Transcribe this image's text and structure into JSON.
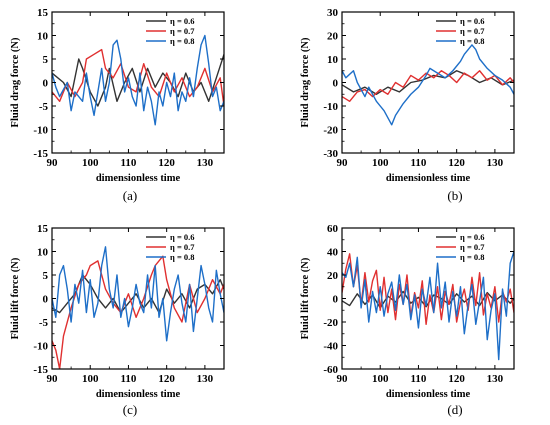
{
  "chart_data": [
    {
      "type": "line",
      "panel": "(a)",
      "xlabel": "dimensionless time",
      "ylabel": "Fluid drag force (N)",
      "xlim": [
        90,
        135
      ],
      "ylim": [
        -15,
        15
      ],
      "xticks": [
        90,
        100,
        110,
        120,
        130
      ],
      "yticks": [
        -15,
        -10,
        -5,
        0,
        5,
        10,
        15
      ],
      "legend": "top-right",
      "series": [
        {
          "name": "η = 0.6",
          "color": "#333333",
          "x": [
            90,
            93,
            95,
            97,
            98,
            100,
            102,
            104,
            105,
            107,
            109,
            111,
            113,
            115,
            117,
            119,
            121,
            123,
            125,
            127,
            129,
            131,
            133,
            135
          ],
          "y": [
            2,
            0,
            -3,
            5,
            3,
            -2,
            -5,
            -1,
            3,
            -4,
            0,
            3,
            -2,
            3,
            -1,
            2,
            0,
            -3,
            2,
            -2,
            0,
            -4,
            1,
            6
          ]
        },
        {
          "name": "η = 0.7",
          "color": "#e03030",
          "x": [
            90,
            92,
            94,
            96,
            98,
            99,
            101,
            103,
            104,
            106,
            108,
            110,
            112,
            114,
            116,
            118,
            120,
            122,
            124,
            126,
            128,
            130,
            132,
            134,
            135
          ],
          "y": [
            -2,
            -4,
            0,
            -3,
            0,
            5,
            6,
            7,
            3,
            1,
            4,
            -1,
            -2,
            4,
            -1,
            -3,
            2,
            -2,
            1,
            -3,
            -1,
            3,
            -2,
            1,
            -5
          ]
        },
        {
          "name": "η = 0.8",
          "color": "#1e6fc8",
          "x": [
            90,
            91,
            92,
            94,
            95,
            96,
            98,
            99,
            100,
            101,
            102,
            103,
            104,
            105,
            106,
            107,
            108,
            109,
            110,
            111,
            112,
            113,
            114,
            115,
            116,
            117,
            118,
            119,
            120,
            121,
            122,
            123,
            124,
            125,
            126,
            127,
            128,
            129,
            130,
            131,
            132,
            133,
            134,
            135
          ],
          "y": [
            2,
            -1,
            -3,
            0,
            -6,
            -2,
            -4,
            2,
            -3,
            -7,
            -2,
            3,
            -4,
            0,
            8,
            9,
            5,
            -2,
            1,
            -3,
            -5,
            2,
            -6,
            -1,
            -4,
            -9,
            -2,
            -5,
            0,
            -3,
            2,
            -6,
            -2,
            -4,
            1,
            -3,
            3,
            8,
            10,
            4,
            -3,
            -1,
            -6,
            -4
          ]
        }
      ]
    },
    {
      "type": "line",
      "panel": "(b)",
      "xlabel": "dimensionless time",
      "ylabel": "Fluid drag force (N)",
      "xlim": [
        90,
        135
      ],
      "ylim": [
        -30,
        30
      ],
      "xticks": [
        90,
        100,
        110,
        120,
        130
      ],
      "yticks": [
        -30,
        -20,
        -10,
        0,
        10,
        20,
        30
      ],
      "legend": "top-right",
      "series": [
        {
          "name": "η = 0.6",
          "color": "#333333",
          "x": [
            90,
            93,
            96,
            99,
            102,
            105,
            108,
            111,
            114,
            117,
            120,
            123,
            126,
            129,
            132,
            135
          ],
          "y": [
            -1,
            -4,
            -2,
            -5,
            -2,
            -4,
            0,
            1,
            3,
            2,
            5,
            3,
            0,
            2,
            -1,
            1
          ]
        },
        {
          "name": "η = 0.7",
          "color": "#e03030",
          "x": [
            90,
            92,
            94,
            96,
            98,
            100,
            102,
            104,
            106,
            108,
            110,
            112,
            114,
            116,
            118,
            120,
            122,
            124,
            126,
            128,
            130,
            132,
            134,
            135
          ],
          "y": [
            -6,
            -8,
            -4,
            -3,
            -6,
            -3,
            -5,
            0,
            -2,
            3,
            1,
            4,
            2,
            5,
            3,
            0,
            4,
            2,
            5,
            1,
            3,
            -1,
            2,
            0
          ]
        },
        {
          "name": "η = 0.8",
          "color": "#1e6fc8",
          "x": [
            90,
            91,
            93,
            94,
            96,
            97,
            99,
            101,
            103,
            104,
            106,
            108,
            110,
            112,
            113,
            115,
            117,
            119,
            121,
            122,
            124,
            125,
            126,
            128,
            130,
            132,
            134,
            135
          ],
          "y": [
            5,
            2,
            5,
            0,
            -6,
            -2,
            -8,
            -12,
            -18,
            -14,
            -9,
            -5,
            -2,
            3,
            6,
            4,
            2,
            5,
            9,
            12,
            16,
            14,
            10,
            6,
            3,
            1,
            -2,
            -5
          ]
        }
      ]
    },
    {
      "type": "line",
      "panel": "(c)",
      "xlabel": "dimensionless time",
      "ylabel": "Fluid  lift  force (N)",
      "xlim": [
        90,
        135
      ],
      "ylim": [
        -15,
        15
      ],
      "xticks": [
        90,
        100,
        110,
        120,
        130
      ],
      "yticks": [
        -15,
        -10,
        -5,
        0,
        5,
        10,
        15
      ],
      "legend": "top-right",
      "series": [
        {
          "name": "η = 0.6",
          "color": "#333333",
          "x": [
            90,
            92,
            94,
            96,
            98,
            100,
            102,
            104,
            106,
            108,
            110,
            112,
            114,
            116,
            118,
            120,
            122,
            124,
            126,
            128,
            130,
            132,
            134,
            135
          ],
          "y": [
            -2,
            -3,
            -1,
            1,
            5,
            3,
            0,
            -2,
            0,
            -3,
            -1,
            1,
            -2,
            0,
            -3,
            2,
            -1,
            1,
            -2,
            2,
            3,
            1,
            4,
            2
          ]
        },
        {
          "name": "η = 0.7",
          "color": "#e03030",
          "x": [
            90,
            91,
            92,
            93,
            95,
            97,
            99,
            100,
            102,
            104,
            106,
            108,
            110,
            112,
            114,
            116,
            117,
            119,
            120,
            122,
            124,
            126,
            128,
            130,
            132,
            134,
            135
          ],
          "y": [
            -9,
            -11,
            -15,
            -8,
            -2,
            3,
            5,
            7,
            8,
            2,
            -1,
            -3,
            1,
            -4,
            0,
            5,
            7,
            9,
            4,
            -2,
            -5,
            3,
            -3,
            0,
            4,
            1,
            3
          ]
        },
        {
          "name": "η = 0.8",
          "color": "#1e6fc8",
          "x": [
            90,
            91,
            92,
            93,
            94,
            95,
            96,
            97,
            98,
            99,
            100,
            101,
            102,
            103,
            104,
            105,
            106,
            107,
            108,
            109,
            110,
            111,
            112,
            113,
            114,
            115,
            116,
            117,
            118,
            119,
            120,
            121,
            122,
            123,
            124,
            125,
            126,
            127,
            128,
            129,
            130,
            131,
            132,
            133,
            134,
            135
          ],
          "y": [
            0,
            -4,
            5,
            7,
            2,
            -5,
            3,
            -1,
            6,
            -3,
            4,
            -4,
            -1,
            7,
            11,
            2,
            -2,
            5,
            -4,
            0,
            -6,
            -2,
            3,
            -1,
            -3,
            5,
            -2,
            7,
            -4,
            0,
            -9,
            -3,
            2,
            5,
            -1,
            -5,
            3,
            -7,
            0,
            7,
            3,
            -2,
            -5,
            6,
            1,
            -3
          ]
        }
      ]
    },
    {
      "type": "line",
      "panel": "(d)",
      "xlabel": "dimensionless time",
      "ylabel": "Fluid  lift  force (N)",
      "xlim": [
        90,
        135
      ],
      "ylim": [
        -60,
        60
      ],
      "xticks": [
        90,
        100,
        110,
        120,
        130
      ],
      "yticks": [
        -60,
        -40,
        -20,
        0,
        20,
        40,
        60
      ],
      "legend": "top-right",
      "series": [
        {
          "name": "η = 0.6",
          "color": "#333333",
          "x": [
            90,
            92,
            94,
            96,
            98,
            100,
            102,
            104,
            106,
            108,
            110,
            112,
            114,
            116,
            118,
            120,
            122,
            124,
            126,
            128,
            130,
            132,
            134,
            135
          ],
          "y": [
            -2,
            -6,
            4,
            -5,
            3,
            -8,
            2,
            -3,
            6,
            -4,
            1,
            -7,
            3,
            0,
            -5,
            4,
            -3,
            2,
            -6,
            5,
            -2,
            3,
            -4,
            0
          ]
        },
        {
          "name": "η = 0.7",
          "color": "#e03030",
          "x": [
            90,
            91,
            92,
            93,
            94,
            95,
            96,
            97,
            98,
            99,
            100,
            101,
            102,
            103,
            104,
            105,
            106,
            107,
            108,
            109,
            110,
            111,
            112,
            113,
            114,
            115,
            116,
            117,
            118,
            119,
            120,
            121,
            122,
            123,
            124,
            125,
            126,
            127,
            128,
            129,
            130,
            131,
            132,
            133,
            134,
            135
          ],
          "y": [
            5,
            25,
            38,
            10,
            28,
            -5,
            22,
            -3,
            15,
            24,
            -10,
            18,
            -12,
            8,
            -18,
            12,
            -5,
            20,
            -15,
            5,
            -8,
            15,
            -22,
            3,
            -12,
            10,
            -18,
            6,
            -5,
            12,
            -20,
            -3,
            8,
            -10,
            18,
            -6,
            22,
            -14,
            4,
            -8,
            10,
            -20,
            6,
            -3,
            8,
            -12
          ]
        },
        {
          "name": "η = 0.8",
          "color": "#1e6fc8",
          "x": [
            90,
            91,
            92,
            93,
            94,
            95,
            96,
            97,
            98,
            99,
            100,
            101,
            102,
            103,
            104,
            105,
            106,
            107,
            108,
            109,
            110,
            111,
            112,
            113,
            114,
            115,
            116,
            117,
            118,
            119,
            120,
            121,
            122,
            123,
            124,
            125,
            126,
            127,
            128,
            129,
            130,
            131,
            132,
            133,
            134,
            135
          ],
          "y": [
            22,
            18,
            30,
            10,
            35,
            -8,
            16,
            -20,
            6,
            -12,
            10,
            -15,
            4,
            14,
            -10,
            20,
            -5,
            12,
            -18,
            3,
            -25,
            8,
            -6,
            18,
            -12,
            30,
            -8,
            14,
            -20,
            6,
            -15,
            10,
            -30,
            -5,
            12,
            -22,
            -2,
            18,
            -35,
            -10,
            4,
            -52,
            8,
            -15,
            30,
            40
          ]
        }
      ]
    }
  ]
}
